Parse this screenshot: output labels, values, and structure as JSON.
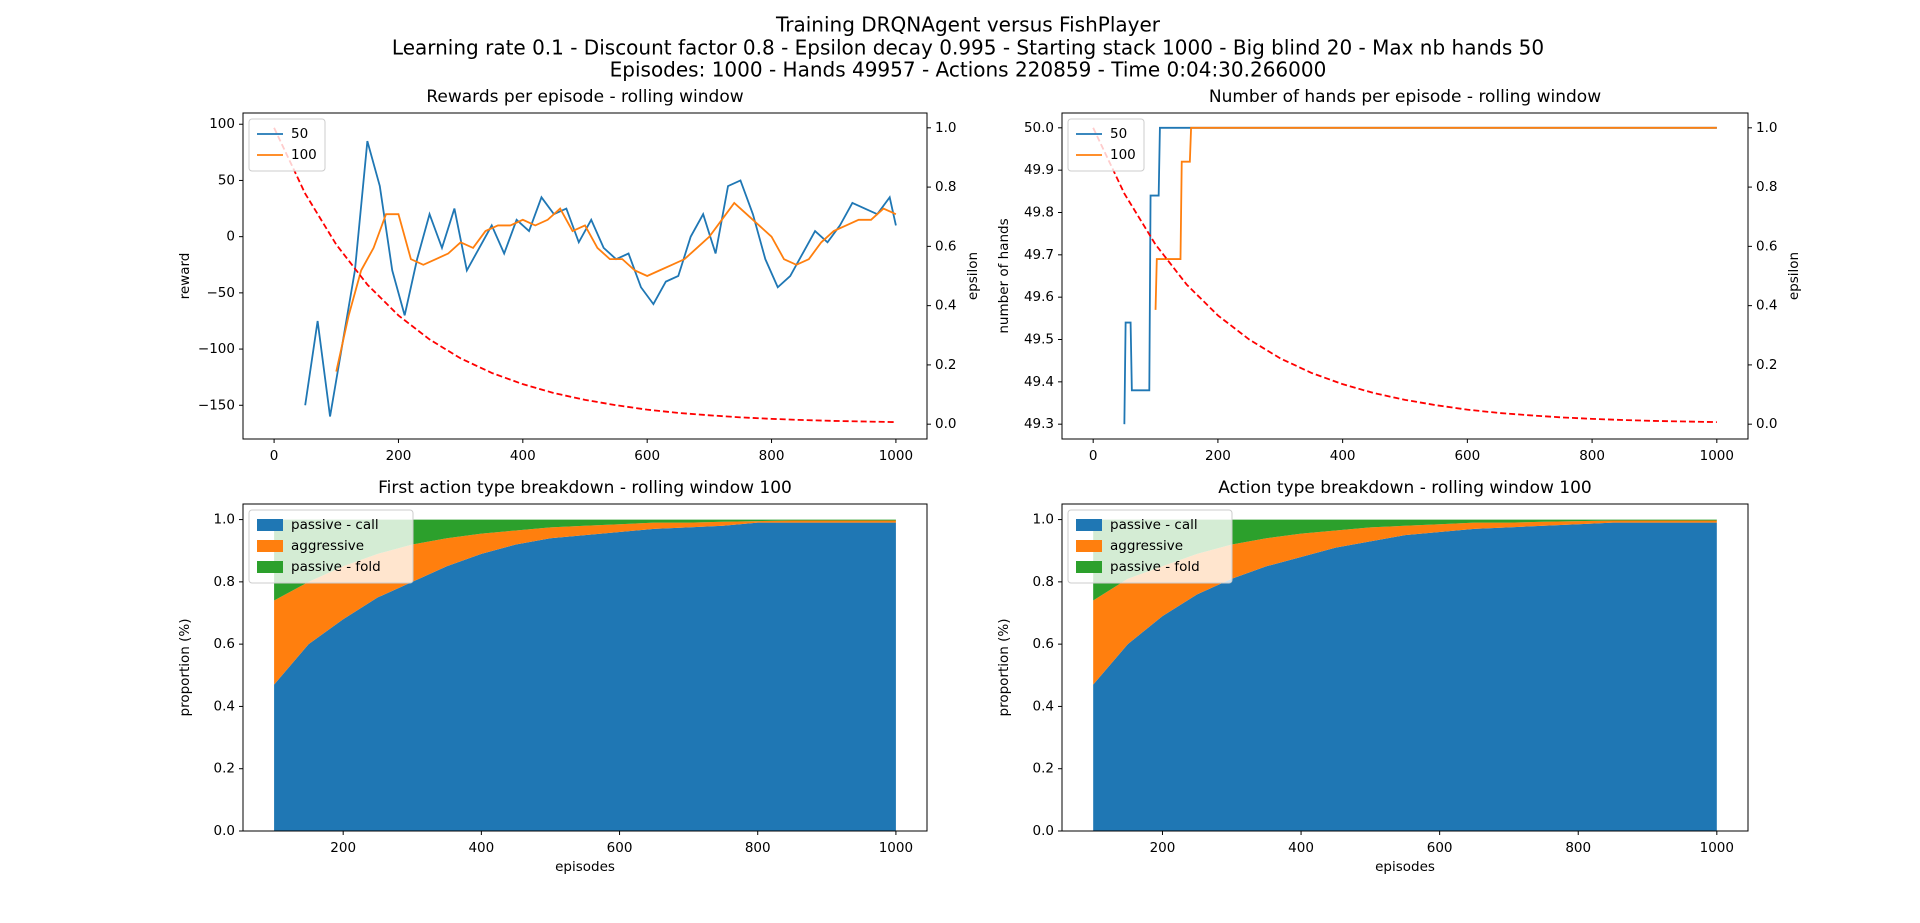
{
  "suptitle": [
    "Training DRQNAgent versus FishPlayer",
    "Learning rate 0.1 - Discount factor 0.8 - Epsilon decay 0.995 - Starting stack 1000 - Big blind 20 - Max nb hands 50",
    "Episodes: 1000 - Hands 49957 - Actions 220859 - Time 0:04:30.266000"
  ],
  "chart_data": [
    {
      "type": "line",
      "title": "Rewards per episode - rolling window",
      "ylabel": "reward",
      "y2label": "epsilon",
      "legend": "upper left",
      "xlim": [
        -50,
        1050
      ],
      "xticks": [
        0,
        200,
        400,
        600,
        800,
        1000
      ],
      "ylim": [
        -180,
        110
      ],
      "yticks": [
        {
          "value": -150,
          "label": "−150"
        },
        {
          "value": -100,
          "label": "−100"
        },
        {
          "value": -50,
          "label": "−50"
        },
        0,
        50,
        100
      ],
      "y2lim": [
        -0.05,
        1.05
      ],
      "y2ticks": [
        {
          "value": 0,
          "label": "0.0"
        },
        {
          "value": 0.2,
          "label": "0.2"
        },
        {
          "value": 0.4,
          "label": "0.4"
        },
        {
          "value": 0.6,
          "label": "0.6"
        },
        {
          "value": 0.8,
          "label": "0.8"
        },
        {
          "value": 1,
          "label": "1.0"
        }
      ],
      "series": [
        {
          "name": "50",
          "color": "#1f77b4",
          "x": [
            50,
            70,
            90,
            110,
            130,
            150,
            170,
            190,
            210,
            230,
            250,
            270,
            290,
            310,
            330,
            350,
            370,
            390,
            410,
            430,
            450,
            470,
            490,
            510,
            530,
            550,
            570,
            590,
            610,
            630,
            650,
            670,
            690,
            710,
            730,
            750,
            770,
            790,
            810,
            830,
            850,
            870,
            890,
            910,
            930,
            950,
            970,
            990,
            1000
          ],
          "values": [
            -150,
            -75,
            -160,
            -95,
            -30,
            85,
            45,
            -30,
            -70,
            -20,
            20,
            -10,
            25,
            -30,
            -10,
            10,
            -15,
            15,
            5,
            35,
            20,
            25,
            -5,
            15,
            -10,
            -20,
            -15,
            -45,
            -60,
            -40,
            -35,
            0,
            20,
            -15,
            45,
            50,
            20,
            -20,
            -45,
            -35,
            -15,
            5,
            -5,
            10,
            30,
            25,
            20,
            35,
            10
          ]
        },
        {
          "name": "100",
          "color": "#ff7f0e",
          "x": [
            100,
            120,
            140,
            160,
            180,
            200,
            220,
            240,
            260,
            280,
            300,
            320,
            340,
            360,
            380,
            400,
            420,
            440,
            460,
            480,
            500,
            520,
            540,
            560,
            580,
            600,
            620,
            640,
            660,
            680,
            700,
            720,
            740,
            760,
            780,
            800,
            820,
            840,
            860,
            880,
            900,
            920,
            940,
            960,
            980,
            1000
          ],
          "values": [
            -120,
            -70,
            -30,
            -10,
            20,
            20,
            -20,
            -25,
            -20,
            -15,
            -5,
            -10,
            5,
            10,
            10,
            15,
            10,
            15,
            25,
            5,
            10,
            -10,
            -20,
            -20,
            -30,
            -35,
            -30,
            -25,
            -20,
            -10,
            0,
            15,
            30,
            20,
            10,
            0,
            -20,
            -25,
            -20,
            -5,
            5,
            10,
            15,
            15,
            25,
            20
          ]
        },
        {
          "color": "#ff0000",
          "dash": true,
          "axis": "y2",
          "x": [
            0,
            50,
            100,
            150,
            200,
            250,
            300,
            350,
            400,
            450,
            500,
            550,
            600,
            650,
            700,
            750,
            800,
            850,
            900,
            950,
            1000
          ],
          "values": [
            1,
            0.778,
            0.606,
            0.471,
            0.367,
            0.286,
            0.222,
            0.173,
            0.135,
            0.105,
            0.082,
            0.064,
            0.049,
            0.038,
            0.03,
            0.023,
            0.018,
            0.014,
            0.011,
            0.009,
            0.007
          ]
        }
      ]
    },
    {
      "type": "line",
      "title": "Number of hands per episode - rolling window",
      "ylabel": "number of hands",
      "y2label": "epsilon",
      "legend": "upper left",
      "xlim": [
        -50,
        1050
      ],
      "xticks": [
        0,
        200,
        400,
        600,
        800,
        1000
      ],
      "ylim": [
        49.265,
        50.035
      ],
      "yticks": [
        49.3,
        49.4,
        49.5,
        49.6,
        49.7,
        49.8,
        49.9,
        {
          "value": 50,
          "label": "50.0"
        }
      ],
      "y2lim": [
        -0.05,
        1.05
      ],
      "y2ticks": [
        {
          "value": 0,
          "label": "0.0"
        },
        {
          "value": 0.2,
          "label": "0.2"
        },
        {
          "value": 0.4,
          "label": "0.4"
        },
        {
          "value": 0.6,
          "label": "0.6"
        },
        {
          "value": 0.8,
          "label": "0.8"
        },
        {
          "value": 1,
          "label": "1.0"
        }
      ],
      "series": [
        {
          "name": "50",
          "color": "#1f77b4",
          "x": [
            50,
            52,
            60,
            62,
            90,
            92,
            105,
            107,
            1000
          ],
          "values": [
            49.3,
            49.54,
            49.54,
            49.38,
            49.38,
            49.84,
            49.84,
            50,
            50
          ]
        },
        {
          "name": "100",
          "color": "#ff7f0e",
          "x": [
            100,
            102,
            140,
            142,
            155,
            157,
            1000
          ],
          "values": [
            49.57,
            49.69,
            49.69,
            49.92,
            49.92,
            50,
            50
          ]
        },
        {
          "color": "#ff0000",
          "dash": true,
          "axis": "y2",
          "x": [
            0,
            50,
            100,
            150,
            200,
            250,
            300,
            350,
            400,
            450,
            500,
            550,
            600,
            650,
            700,
            750,
            800,
            850,
            900,
            950,
            1000
          ],
          "values": [
            1,
            0.778,
            0.606,
            0.471,
            0.367,
            0.286,
            0.222,
            0.173,
            0.135,
            0.105,
            0.082,
            0.064,
            0.049,
            0.038,
            0.03,
            0.023,
            0.018,
            0.014,
            0.011,
            0.009,
            0.007
          ]
        }
      ]
    },
    {
      "type": "area",
      "title": "First action type breakdown - rolling window 100",
      "xlabel": "episodes",
      "ylabel": "proportion (%)",
      "legend": "upper left",
      "xlim": [
        55,
        1045
      ],
      "xticks": [
        200,
        400,
        600,
        800,
        1000
      ],
      "ylim": [
        0,
        1.05
      ],
      "yticks": [
        {
          "value": 0,
          "label": "0.0"
        },
        {
          "value": 0.2,
          "label": "0.2"
        },
        {
          "value": 0.4,
          "label": "0.4"
        },
        {
          "value": 0.6,
          "label": "0.6"
        },
        {
          "value": 0.8,
          "label": "0.8"
        },
        {
          "value": 1,
          "label": "1.0"
        }
      ],
      "x": [
        100,
        150,
        200,
        250,
        300,
        350,
        400,
        450,
        500,
        550,
        600,
        650,
        700,
        750,
        800,
        850,
        900,
        950,
        1000
      ],
      "series": [
        {
          "name": "passive - call",
          "color": "#1f77b4",
          "values": [
            0.47,
            0.6,
            0.68,
            0.75,
            0.8,
            0.85,
            0.89,
            0.92,
            0.94,
            0.95,
            0.96,
            0.97,
            0.975,
            0.98,
            0.99,
            0.99,
            0.99,
            0.99,
            0.99
          ]
        },
        {
          "name": "aggressive",
          "color": "#ff7f0e",
          "values": [
            0.27,
            0.2,
            0.17,
            0.14,
            0.12,
            0.09,
            0.065,
            0.045,
            0.035,
            0.03,
            0.025,
            0.02,
            0.015,
            0.013,
            0.005,
            0.007,
            0.007,
            0.007,
            0.007
          ]
        },
        {
          "name": "passive - fold",
          "color": "#2ca02c",
          "values": [
            0.26,
            0.2,
            0.15,
            0.11,
            0.08,
            0.06,
            0.045,
            0.035,
            0.025,
            0.02,
            0.015,
            0.01,
            0.01,
            0.007,
            0.005,
            0.003,
            0.003,
            0.003,
            0.003
          ]
        }
      ]
    },
    {
      "type": "area",
      "title": "Action type breakdown - rolling window 100",
      "xlabel": "episodes",
      "ylabel": "proportion (%)",
      "legend": "upper left",
      "xlim": [
        55,
        1045
      ],
      "xticks": [
        200,
        400,
        600,
        800,
        1000
      ],
      "ylim": [
        0,
        1.05
      ],
      "yticks": [
        {
          "value": 0,
          "label": "0.0"
        },
        {
          "value": 0.2,
          "label": "0.2"
        },
        {
          "value": 0.4,
          "label": "0.4"
        },
        {
          "value": 0.6,
          "label": "0.6"
        },
        {
          "value": 0.8,
          "label": "0.8"
        },
        {
          "value": 1,
          "label": "1.0"
        }
      ],
      "x": [
        100,
        150,
        200,
        250,
        300,
        350,
        400,
        450,
        500,
        550,
        600,
        650,
        700,
        750,
        800,
        850,
        900,
        950,
        1000
      ],
      "series": [
        {
          "name": "passive - call",
          "color": "#1f77b4",
          "values": [
            0.47,
            0.6,
            0.69,
            0.76,
            0.81,
            0.85,
            0.88,
            0.91,
            0.93,
            0.95,
            0.96,
            0.97,
            0.975,
            0.98,
            0.985,
            0.99,
            0.99,
            0.99,
            0.99
          ]
        },
        {
          "name": "aggressive",
          "color": "#ff7f0e",
          "values": [
            0.27,
            0.21,
            0.16,
            0.13,
            0.11,
            0.09,
            0.075,
            0.055,
            0.045,
            0.03,
            0.025,
            0.02,
            0.015,
            0.013,
            0.01,
            0.007,
            0.007,
            0.007,
            0.007
          ]
        },
        {
          "name": "passive - fold",
          "color": "#2ca02c",
          "values": [
            0.26,
            0.19,
            0.15,
            0.11,
            0.08,
            0.06,
            0.045,
            0.035,
            0.025,
            0.02,
            0.015,
            0.01,
            0.01,
            0.007,
            0.005,
            0.003,
            0.003,
            0.003,
            0.003
          ]
        }
      ]
    }
  ]
}
